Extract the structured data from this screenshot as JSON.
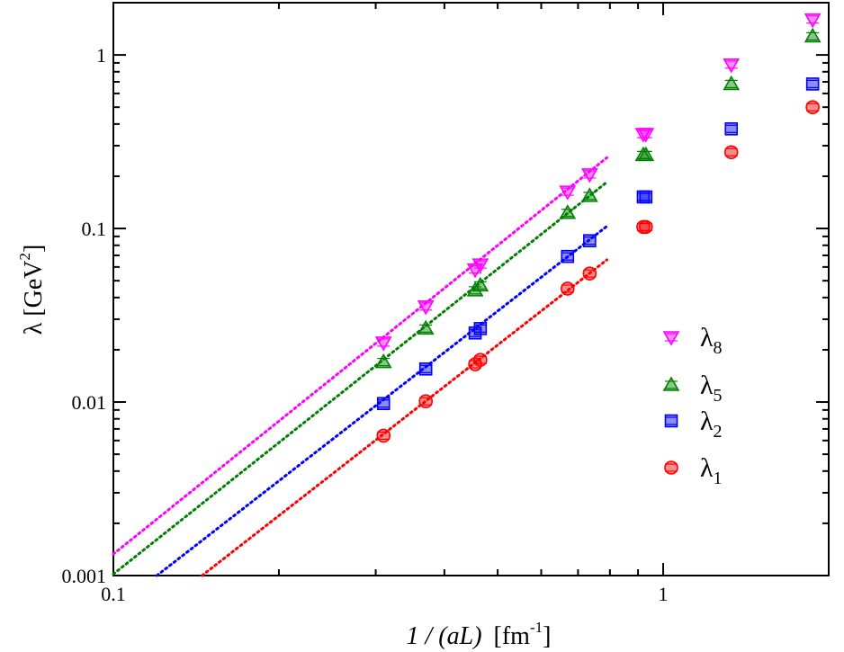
{
  "chart_data": {
    "type": "scatter",
    "xscale": "log",
    "yscale": "log",
    "xlim": [
      0.1,
      2.0
    ],
    "ylim": [
      0.001,
      2.0
    ],
    "xlabel": {
      "pre": "1 / (aL)",
      "unit": "[fm",
      "sup": "-1",
      "post": "]"
    },
    "ylabel": {
      "pre": "λ [GeV",
      "sup": "2",
      "post": "]"
    },
    "x_ticks": [
      {
        "value": 0.1,
        "label": "0.1"
      },
      {
        "value": 1,
        "label": "1"
      }
    ],
    "y_ticks": [
      {
        "value": 0.001,
        "label": "0.001"
      },
      {
        "value": 0.01,
        "label": "0.01"
      },
      {
        "value": 0.1,
        "label": "0.1"
      },
      {
        "value": 1,
        "label": "1"
      }
    ],
    "legend_position": "center-right",
    "series": [
      {
        "name": "λ8",
        "symbol": "λ",
        "subscript": "8",
        "marker": "triangle-down",
        "color": "#ff00ff",
        "points": [
          [
            0.31,
            0.022
          ],
          [
            0.37,
            0.0355
          ],
          [
            0.455,
            0.058
          ],
          [
            0.465,
            0.062
          ],
          [
            0.67,
            0.163
          ],
          [
            0.735,
            0.205
          ],
          [
            0.92,
            0.35
          ],
          [
            0.93,
            0.35
          ],
          [
            1.33,
            0.88
          ],
          [
            1.87,
            1.6
          ]
        ],
        "fit": {
          "x": [
            0.1,
            0.79
          ],
          "y": [
            0.00133,
            0.256
          ]
        }
      },
      {
        "name": "λ5",
        "symbol": "λ",
        "subscript": "5",
        "marker": "triangle-up",
        "color": "#008000",
        "points": [
          [
            0.31,
            0.017
          ],
          [
            0.37,
            0.0265
          ],
          [
            0.455,
            0.044
          ],
          [
            0.465,
            0.047
          ],
          [
            0.67,
            0.123
          ],
          [
            0.735,
            0.154
          ],
          [
            0.92,
            0.265
          ],
          [
            0.93,
            0.265
          ],
          [
            1.33,
            0.68
          ],
          [
            1.87,
            1.28
          ]
        ],
        "fit": {
          "x": [
            0.1,
            0.79
          ],
          "y": [
            0.00102,
            0.185
          ]
        }
      },
      {
        "name": "λ2",
        "symbol": "λ",
        "subscript": "2",
        "marker": "square",
        "color": "#0000ff",
        "points": [
          [
            0.31,
            0.0098
          ],
          [
            0.37,
            0.0155
          ],
          [
            0.455,
            0.025
          ],
          [
            0.465,
            0.0265
          ],
          [
            0.67,
            0.069
          ],
          [
            0.735,
            0.085
          ],
          [
            0.92,
            0.152
          ],
          [
            0.93,
            0.152
          ],
          [
            1.33,
            0.375
          ],
          [
            1.87,
            0.68
          ]
        ],
        "fit": {
          "x": [
            0.12,
            0.79
          ],
          "y": [
            0.001,
            0.103
          ]
        }
      },
      {
        "name": "λ1",
        "symbol": "λ",
        "subscript": "1",
        "marker": "circle",
        "color": "#ff0000",
        "points": [
          [
            0.31,
            0.0064
          ],
          [
            0.37,
            0.0101
          ],
          [
            0.455,
            0.0165
          ],
          [
            0.465,
            0.0175
          ],
          [
            0.67,
            0.045
          ],
          [
            0.735,
            0.055
          ],
          [
            0.92,
            0.102
          ],
          [
            0.93,
            0.102
          ],
          [
            1.33,
            0.275
          ],
          [
            1.87,
            0.5
          ]
        ],
        "fit": {
          "x": [
            0.145,
            0.79
          ],
          "y": [
            0.001,
            0.066
          ]
        }
      }
    ]
  }
}
